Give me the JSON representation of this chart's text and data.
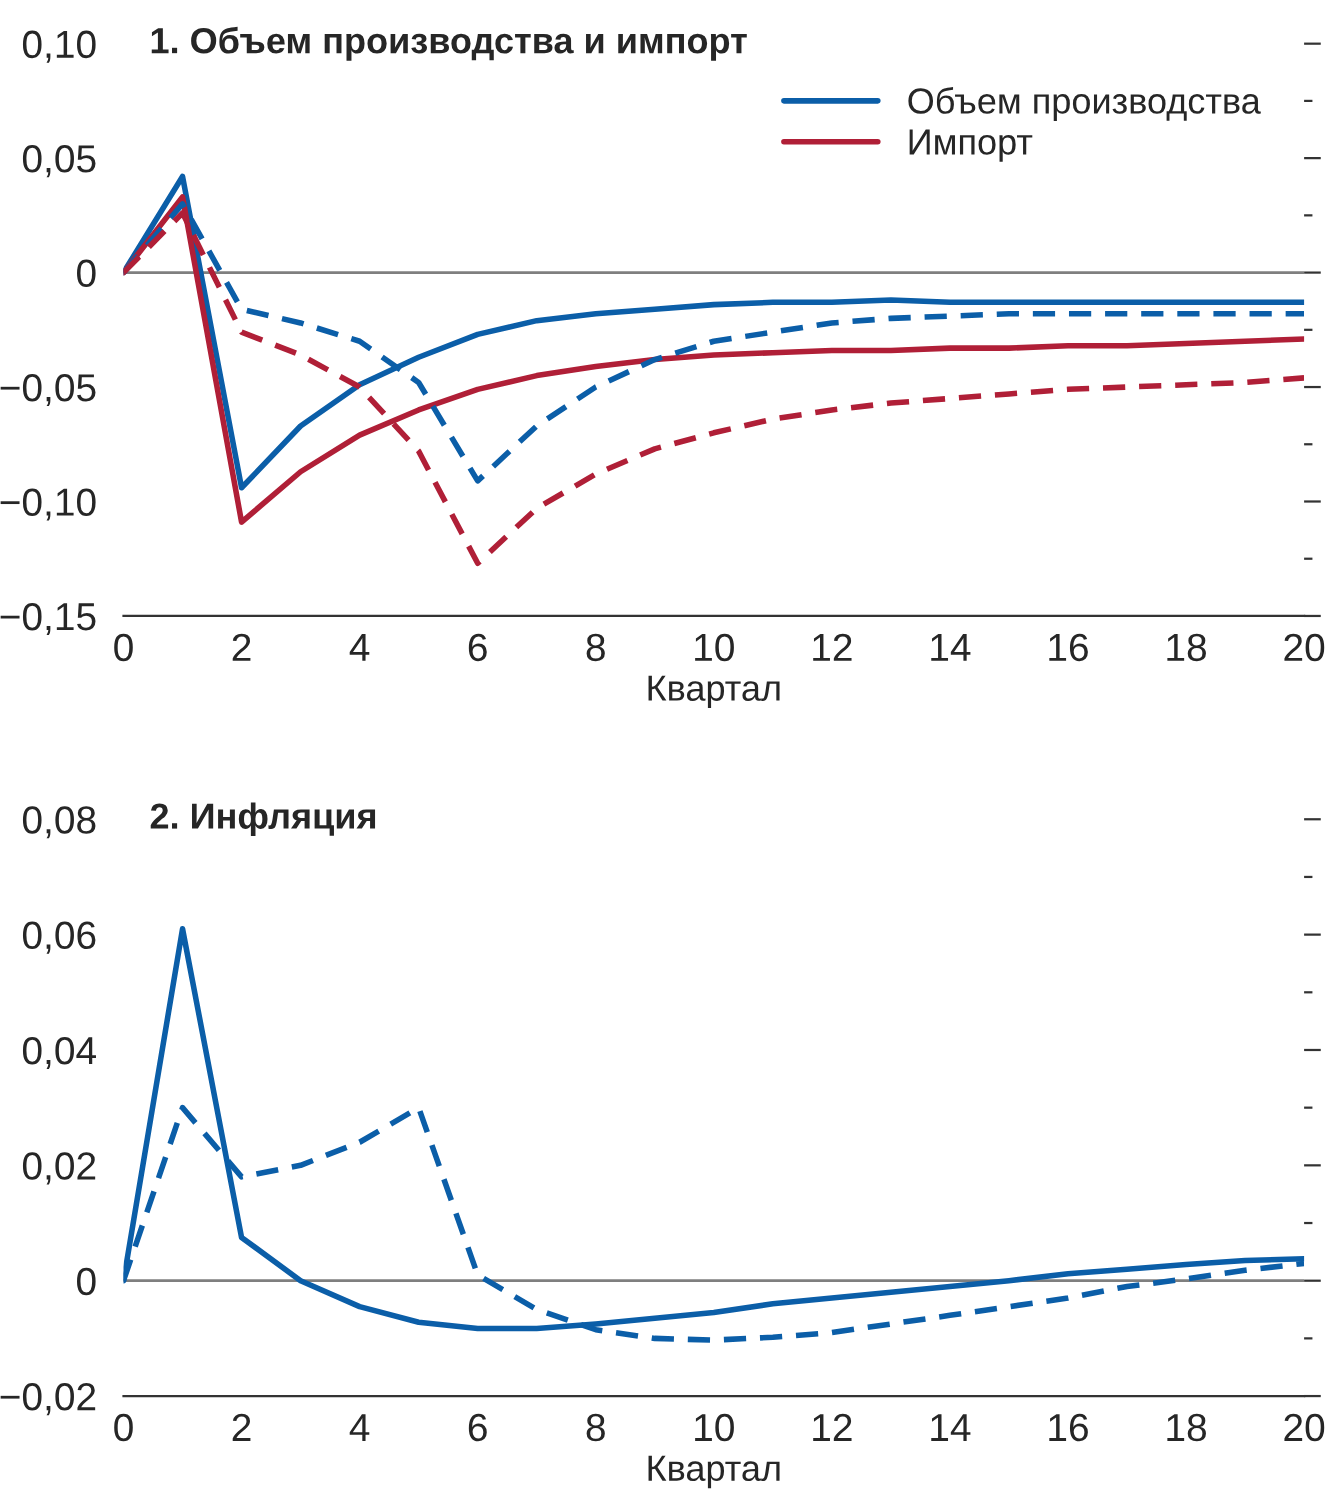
{
  "chart_data": [
    {
      "type": "line",
      "title": "1. Объем производства и импорт",
      "xlabel": "Квартал",
      "x": [
        0,
        1,
        2,
        3,
        4,
        5,
        6,
        7,
        8,
        9,
        10,
        11,
        12,
        13,
        14,
        15,
        16,
        17,
        18,
        19,
        20
      ],
      "series": [
        {
          "name": "Объем производства",
          "color": "#0b5ea8",
          "line_style": "solid",
          "values": [
            0,
            0.042,
            -0.094,
            -0.067,
            -0.049,
            -0.037,
            -0.027,
            -0.021,
            -0.018,
            -0.016,
            -0.014,
            -0.013,
            -0.013,
            -0.012,
            -0.013,
            -0.013,
            -0.013,
            -0.013,
            -0.013,
            -0.013,
            -0.013
          ]
        },
        {
          "name": "Импорт",
          "color": "#b01f37",
          "line_style": "solid",
          "values": [
            0,
            0.033,
            -0.109,
            -0.087,
            -0.071,
            -0.06,
            -0.051,
            -0.045,
            -0.041,
            -0.038,
            -0.036,
            -0.035,
            -0.034,
            -0.034,
            -0.033,
            -0.033,
            -0.032,
            -0.032,
            -0.031,
            -0.03,
            -0.029
          ]
        },
        {
          "color": "#0b5ea8",
          "line_style": "dashed",
          "values": [
            0,
            0.03,
            -0.016,
            -0.022,
            -0.03,
            -0.048,
            -0.091,
            -0.067,
            -0.05,
            -0.038,
            -0.03,
            -0.026,
            -0.022,
            -0.02,
            -0.019,
            -0.018,
            -0.018,
            -0.018,
            -0.018,
            -0.018,
            -0.018
          ]
        },
        {
          "color": "#b01f37",
          "line_style": "dashed",
          "values": [
            0,
            0.026,
            -0.026,
            -0.036,
            -0.05,
            -0.078,
            -0.127,
            -0.103,
            -0.088,
            -0.077,
            -0.07,
            -0.064,
            -0.06,
            -0.057,
            -0.055,
            -0.053,
            -0.051,
            -0.05,
            -0.049,
            -0.048,
            -0.046
          ]
        }
      ],
      "xlim": [
        0,
        20
      ],
      "xticks": [
        0,
        2,
        4,
        6,
        8,
        10,
        12,
        14,
        16,
        18,
        20
      ],
      "ylim": [
        -0.15,
        0.1
      ],
      "yticks": [
        {
          "value": -0.15,
          "label": "−0,15"
        },
        {
          "value": -0.125,
          "label": null
        },
        {
          "value": -0.1,
          "label": "−0,10"
        },
        {
          "value": -0.075,
          "label": null
        },
        {
          "value": -0.05,
          "label": "−0,05"
        },
        {
          "value": -0.025,
          "label": null
        },
        {
          "value": 0,
          "label": "0"
        },
        {
          "value": 0.025,
          "label": null
        },
        {
          "value": 0.05,
          "label": "0,05"
        },
        {
          "value": 0.075,
          "label": null
        },
        {
          "value": 0.1,
          "label": "0,10"
        }
      ],
      "ref_lines": [
        {
          "axis": "y",
          "value": 0,
          "color": "#7f7f7f"
        }
      ],
      "legend": "top right",
      "grid": false
    },
    {
      "type": "line",
      "title": "2. Инфляция",
      "xlabel": "Квартал",
      "x": [
        0,
        1,
        2,
        3,
        4,
        5,
        6,
        7,
        8,
        9,
        10,
        11,
        12,
        13,
        14,
        15,
        16,
        17,
        18,
        19,
        20
      ],
      "series": [
        {
          "color": "#0b5ea8",
          "line_style": "solid",
          "values": [
            0,
            0.061,
            0.0075,
            0,
            -0.0045,
            -0.0072,
            -0.0083,
            -0.0083,
            -0.0075,
            -0.0065,
            -0.0055,
            -0.004,
            -0.003,
            -0.002,
            -0.001,
            0,
            0.0012,
            0.002,
            0.0028,
            0.0035,
            0.0038
          ]
        },
        {
          "color": "#0b5ea8",
          "line_style": "dashed",
          "values": [
            0,
            0.03,
            0.018,
            0.02,
            0.024,
            0.03,
            0.001,
            -0.005,
            -0.0085,
            -0.01,
            -0.0103,
            -0.0098,
            -0.009,
            -0.0075,
            -0.006,
            -0.0045,
            -0.003,
            -0.001,
            0.0003,
            0.0018,
            0.003
          ]
        }
      ],
      "xlim": [
        0,
        20
      ],
      "xticks": [
        0,
        2,
        4,
        6,
        8,
        10,
        12,
        14,
        16,
        18,
        20
      ],
      "ylim": [
        -0.02,
        0.08
      ],
      "yticks": [
        {
          "value": -0.02,
          "label": "−0,02"
        },
        {
          "value": -0.01,
          "label": null
        },
        {
          "value": 0,
          "label": "0"
        },
        {
          "value": 0.01,
          "label": null
        },
        {
          "value": 0.02,
          "label": "0,02"
        },
        {
          "value": 0.03,
          "label": null
        },
        {
          "value": 0.04,
          "label": "0,04"
        },
        {
          "value": 0.05,
          "label": null
        },
        {
          "value": 0.06,
          "label": "0,06"
        },
        {
          "value": 0.07,
          "label": null
        },
        {
          "value": 0.08,
          "label": "0,08"
        }
      ],
      "ref_lines": [
        {
          "axis": "y",
          "value": 0,
          "color": "#7f7f7f"
        }
      ],
      "grid": false
    }
  ]
}
